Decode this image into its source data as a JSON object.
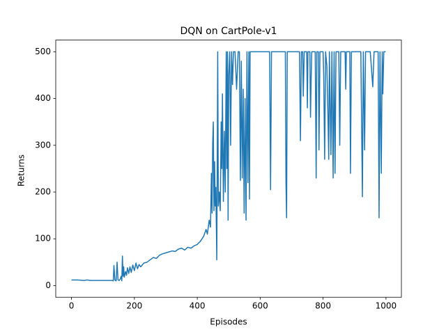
{
  "chart_data": {
    "type": "line",
    "title": "DQN on CartPole-v1",
    "x_label": "Episodes",
    "y_label": "Returns",
    "color": "#1f77b4",
    "xlim": [
      -50,
      1049
    ],
    "ylim": [
      -25,
      525
    ],
    "xticks": [
      0,
      200,
      400,
      600,
      800,
      1000
    ],
    "yticks": [
      0,
      100,
      200,
      300,
      400,
      500
    ],
    "grid": false,
    "x": [
      0,
      20,
      40,
      50,
      60,
      80,
      100,
      120,
      130,
      133,
      135,
      138,
      142,
      145,
      148,
      152,
      155,
      158,
      160,
      162,
      164,
      166,
      168,
      172,
      175,
      178,
      182,
      186,
      190,
      195,
      200,
      205,
      210,
      215,
      220,
      230,
      240,
      250,
      260,
      270,
      280,
      290,
      300,
      310,
      320,
      330,
      340,
      350,
      360,
      370,
      380,
      390,
      400,
      410,
      420,
      428,
      432,
      438,
      442,
      445,
      447,
      449,
      451,
      453,
      455,
      457,
      459,
      462,
      465,
      467,
      470,
      473,
      476,
      478,
      480,
      483,
      486,
      489,
      492,
      494,
      496,
      498,
      500,
      503,
      506,
      509,
      512,
      515,
      520,
      525,
      530,
      534,
      537,
      540,
      543,
      546,
      549,
      552,
      555,
      558,
      561,
      564,
      566,
      568,
      600,
      630,
      633,
      636,
      680,
      682,
      684,
      686,
      710,
      725,
      728,
      731,
      735,
      737,
      740,
      748,
      750,
      752,
      758,
      760,
      762,
      764,
      775,
      778,
      780,
      785,
      787,
      790,
      800,
      802,
      805,
      808,
      812,
      815,
      818,
      820,
      825,
      828,
      832,
      835,
      838,
      841,
      850,
      853,
      856,
      870,
      872,
      874,
      885,
      887,
      890,
      900,
      910,
      920,
      925,
      928,
      932,
      935,
      940,
      950,
      958,
      962,
      975,
      978,
      981,
      985,
      988,
      990,
      993,
      999
    ],
    "values": [
      12,
      12,
      11,
      12,
      11,
      11,
      11,
      11,
      11,
      10,
      43,
      12,
      10,
      50,
      12,
      11,
      14,
      20,
      10,
      63,
      20,
      40,
      18,
      30,
      22,
      38,
      26,
      40,
      28,
      44,
      32,
      48,
      36,
      45,
      40,
      48,
      50,
      55,
      60,
      58,
      65,
      68,
      70,
      72,
      74,
      73,
      78,
      80,
      76,
      82,
      80,
      85,
      88,
      95,
      105,
      120,
      110,
      140,
      125,
      240,
      155,
      305,
      350,
      160,
      265,
      170,
      210,
      55,
      500,
      170,
      200,
      160,
      350,
      250,
      410,
      180,
      330,
      200,
      500,
      250,
      500,
      140,
      450,
      500,
      300,
      500,
      430,
      500,
      500,
      420,
      500,
      500,
      225,
      480,
      230,
      420,
      155,
      400,
      140,
      500,
      220,
      500,
      185,
      500,
      500,
      500,
      205,
      500,
      500,
      220,
      145,
      500,
      500,
      500,
      310,
      500,
      500,
      405,
      500,
      500,
      380,
      500,
      500,
      360,
      440,
      500,
      500,
      230,
      500,
      500,
      290,
      500,
      500,
      450,
      270,
      500,
      470,
      380,
      270,
      500,
      280,
      500,
      230,
      500,
      240,
      500,
      500,
      300,
      500,
      500,
      420,
      500,
      500,
      240,
      500,
      500,
      500,
      500,
      190,
      500,
      290,
      500,
      500,
      500,
      425,
      500,
      500,
      145,
      500,
      240,
      500,
      410,
      500,
      500
    ]
  }
}
